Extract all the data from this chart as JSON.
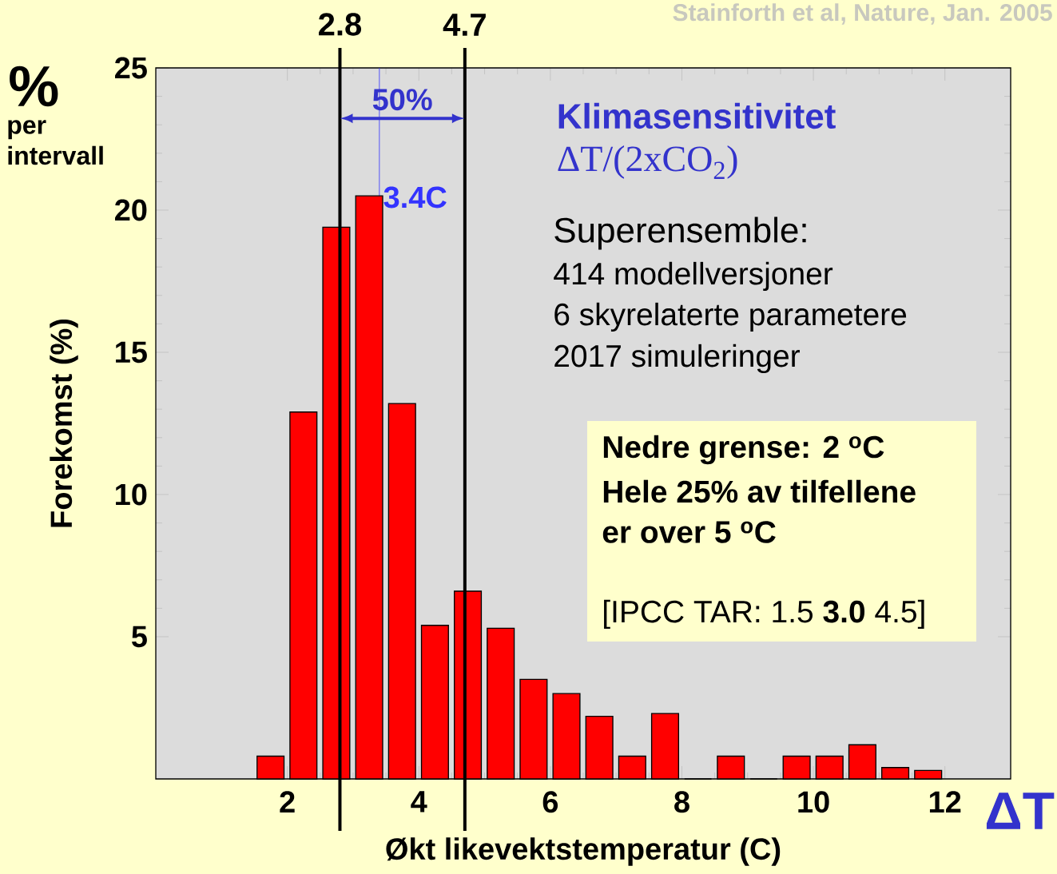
{
  "chart_data": {
    "type": "histogram",
    "title": "Klimasensitivitet",
    "subtitle": "ΔT/(2xCO$_{2}$)",
    "xlabel": "Økt likevektstemperatur (C)",
    "ylabel": "Forekomst (%)",
    "bins": [
      1.5,
      2.0,
      2.5,
      3.0,
      3.5,
      4.0,
      4.5,
      5.0,
      5.5,
      6.0,
      6.5,
      7.0,
      7.5,
      8.0,
      8.5,
      9.0,
      9.5,
      10.0,
      10.5,
      11.0,
      11.5,
      12.0
    ],
    "values": [
      0.8,
      12.9,
      19.4,
      20.5,
      13.2,
      5.4,
      6.6,
      5.3,
      3.5,
      3.0,
      2.2,
      0.8,
      2.3,
      0,
      0.8,
      0,
      0.8,
      0.8,
      1.2,
      0.4,
      0.3
    ],
    "color": "#ff0000",
    "xlim": [
      0,
      13
    ],
    "ylim": [
      0,
      25
    ],
    "xticks": [
      2,
      4,
      6,
      8,
      10,
      12
    ],
    "yticks": [
      5,
      10,
      15,
      20,
      25
    ],
    "ref_lines": [
      {
        "axis": "x",
        "value": 2.8,
        "label": "2.8",
        "color": "#000000"
      },
      {
        "axis": "x",
        "value": 4.7,
        "label": "4.7",
        "color": "#000000"
      },
      {
        "axis": "x",
        "value": 3.4,
        "label": "3.4C",
        "color": "#3333ff"
      }
    ],
    "annotations": [
      "%",
      "per intervall",
      "Superensemble:",
      "414 modellversjoner",
      "6 skyrelaterte parametere",
      "2017 simuleringer",
      "Nedre grense: 2 $^{o}$C",
      "Hele 25% av tilfellene",
      "er over 5 $^{o}$C",
      "[IPCC TAR: 1.5 **3.0** 4.5]",
      "50%",
      "ΔT",
      "Stainforth et al, Nature, Jan. 2005"
    ]
  }
}
